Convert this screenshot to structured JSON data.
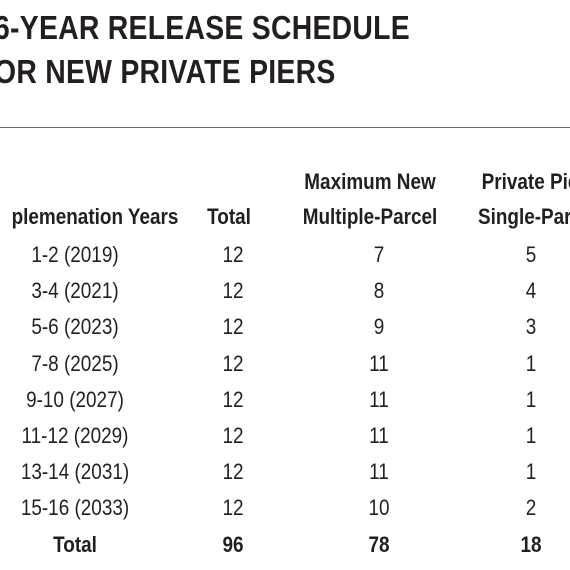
{
  "title": {
    "line1": "6-YEAR RELEASE SCHEDULE",
    "line2": "OR NEW PRIVATE PIERS"
  },
  "table": {
    "headers": {
      "years": "plemenation Years",
      "total": "Total",
      "multi_line1": "Maximum New",
      "multi_line2": "Multiple-Parcel",
      "single_line1": "Private Pie",
      "single_line2": "Single-Parc"
    },
    "rows": [
      {
        "years": "1-2  (2019)",
        "total": "12",
        "multi": "7",
        "single": "5"
      },
      {
        "years": "3-4  (2021)",
        "total": "12",
        "multi": "8",
        "single": "4"
      },
      {
        "years": "5-6  (2023)",
        "total": "12",
        "multi": "9",
        "single": "3"
      },
      {
        "years": "7-8  (2025)",
        "total": "12",
        "multi": "11",
        "single": "1"
      },
      {
        "years": "9-10  (2027)",
        "total": "12",
        "multi": "11",
        "single": "1"
      },
      {
        "years": "11-12  (2029)",
        "total": "12",
        "multi": "11",
        "single": "1"
      },
      {
        "years": "13-14  (2031)",
        "total": "12",
        "multi": "11",
        "single": "1"
      },
      {
        "years": "15-16  (2033)",
        "total": "12",
        "multi": "10",
        "single": "2"
      }
    ],
    "totals": {
      "years": "Total",
      "total": "96",
      "multi": "78",
      "single": "18"
    }
  }
}
